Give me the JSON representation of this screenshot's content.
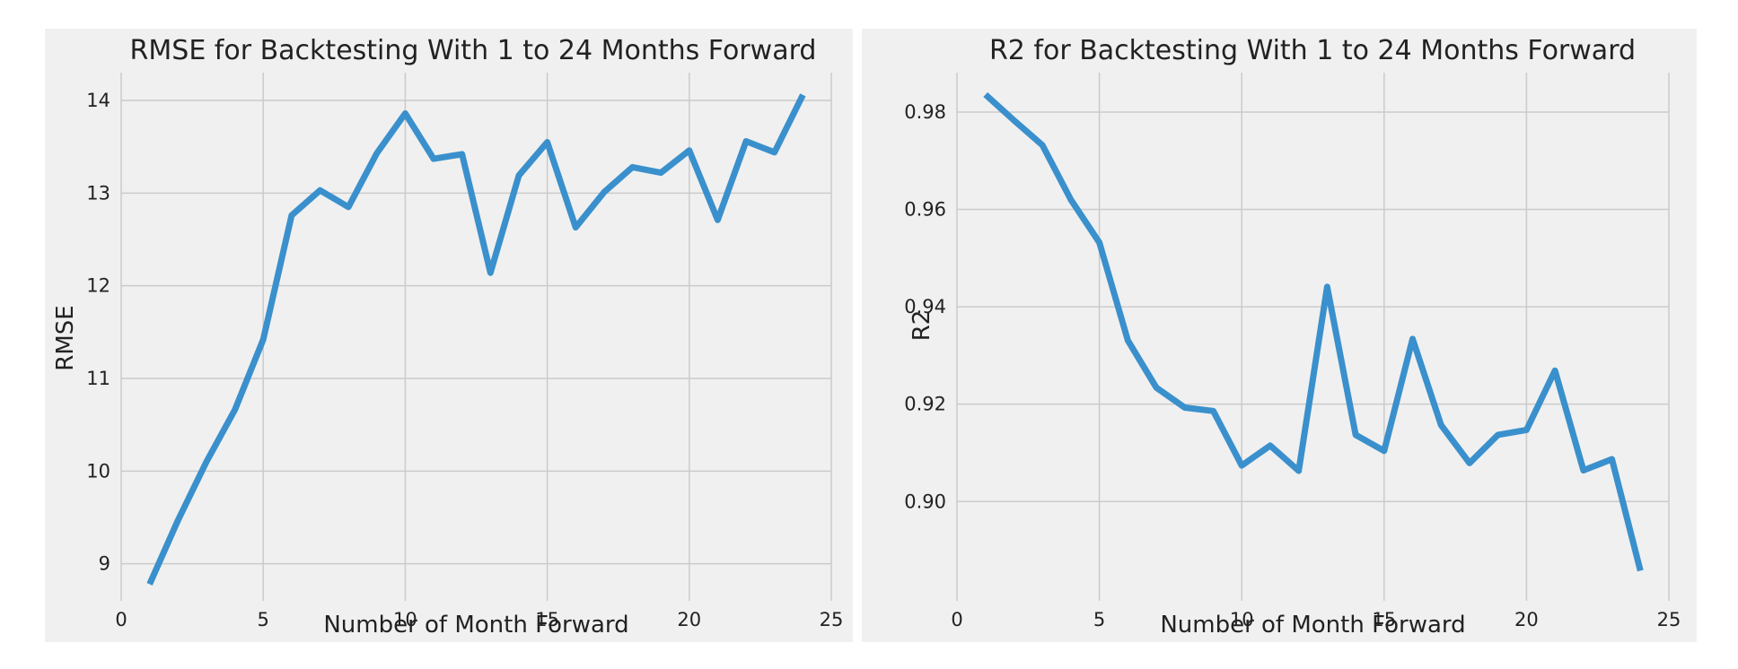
{
  "chart_data": [
    {
      "type": "line",
      "title": "RMSE for Backtesting With 1 to 24 Months Forward",
      "xlabel": "Number of Month Forward",
      "ylabel": "RMSE",
      "xlim": [
        0,
        25
      ],
      "ylim": [
        8.6,
        14.3
      ],
      "xticks": [
        "0",
        "5",
        "10",
        "15",
        "20",
        "25"
      ],
      "yticks": [
        "9",
        "10",
        "11",
        "12",
        "13",
        "14"
      ],
      "grid": true,
      "color": "#3a90cc",
      "x": [
        1,
        2,
        3,
        4,
        5,
        6,
        7,
        8,
        9,
        10,
        11,
        12,
        13,
        14,
        15,
        16,
        17,
        18,
        19,
        20,
        21,
        22,
        23,
        24
      ],
      "series": [
        {
          "values": [
            8.78,
            9.47,
            10.1,
            10.66,
            11.42,
            12.76,
            13.03,
            12.85,
            13.43,
            13.86,
            13.37,
            13.42,
            12.14,
            13.19,
            13.55,
            12.63,
            13.01,
            13.28,
            13.22,
            13.46,
            12.71,
            13.56,
            13.44,
            14.06
          ]
        }
      ]
    },
    {
      "type": "line",
      "title": "R2 for Backtesting With 1 to 24 Months Forward",
      "xlabel": "Number of Month Forward",
      "ylabel": "R2",
      "xlim": [
        0,
        25
      ],
      "ylim": [
        0.8796,
        0.9881
      ],
      "xticks": [
        "0",
        "5",
        "10",
        "15",
        "20",
        "25"
      ],
      "yticks": [
        "0.90",
        "0.92",
        "0.94",
        "0.96",
        "0.98"
      ],
      "grid": true,
      "color": "#3a90cc",
      "x": [
        1,
        2,
        3,
        4,
        5,
        6,
        7,
        8,
        9,
        10,
        11,
        12,
        13,
        14,
        15,
        16,
        17,
        18,
        19,
        20,
        21,
        22,
        23,
        24
      ],
      "series": [
        {
          "values": [
            0.9836,
            0.9783,
            0.9732,
            0.962,
            0.9532,
            0.9331,
            0.9234,
            0.9193,
            0.9186,
            0.9074,
            0.9115,
            0.9063,
            0.9441,
            0.9137,
            0.9104,
            0.9334,
            0.9157,
            0.9079,
            0.9137,
            0.9147,
            0.9269,
            0.9064,
            0.9087,
            0.8858
          ]
        }
      ]
    }
  ]
}
